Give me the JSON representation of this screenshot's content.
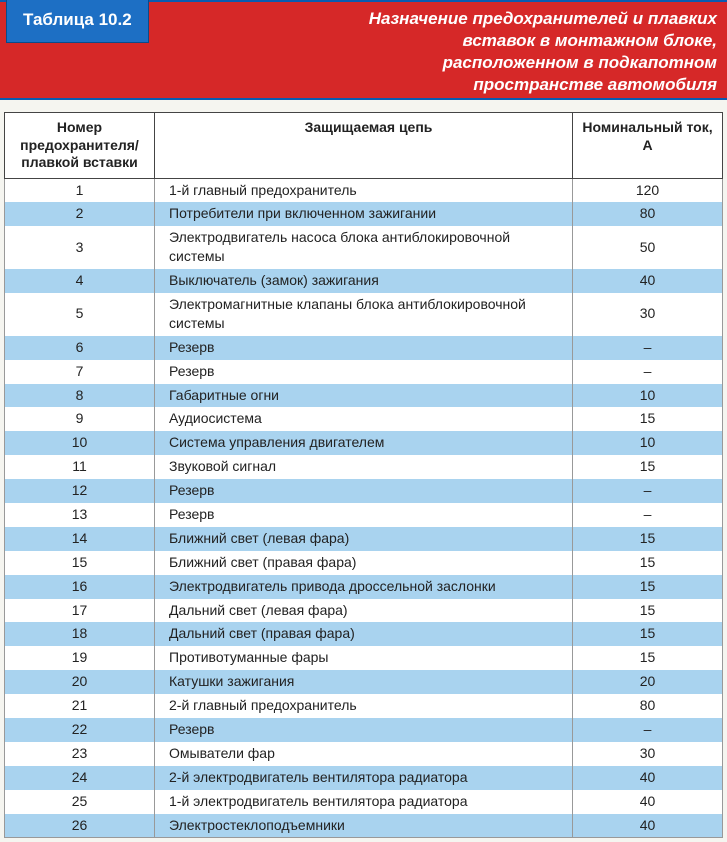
{
  "header": {
    "badge": "Таблица 10.2",
    "title_lines": [
      "Назначение предохранителей и плавких",
      "вставок в монтажном блоке,",
      "расположенном в подкапотном",
      "пространстве автомобиля"
    ],
    "band_color": "#d62828",
    "badge_color": "#1d6fc4",
    "band_border": "#0a5bb0"
  },
  "table": {
    "columns": [
      "Номер предохранителя/ плавкой вставки",
      "Защищаемая цепь",
      "Номинальный ток, А"
    ],
    "stripe_colors": {
      "odd": "#ffffff",
      "even": "#a9d3ef"
    },
    "rows": [
      {
        "num": "1",
        "desc": "1-й главный предохранитель",
        "amp": "120"
      },
      {
        "num": "2",
        "desc": "Потребители при включенном зажигании",
        "amp": "80"
      },
      {
        "num": "3",
        "desc": "Электродвигатель насоса блока антиблокировочной системы",
        "amp": "50"
      },
      {
        "num": "4",
        "desc": "Выключатель (замок) зажигания",
        "amp": "40"
      },
      {
        "num": "5",
        "desc": "Электромагнитные клапаны блока антиблокировочной системы",
        "amp": "30"
      },
      {
        "num": "6",
        "desc": "Резерв",
        "amp": "–"
      },
      {
        "num": "7",
        "desc": "Резерв",
        "amp": "–"
      },
      {
        "num": "8",
        "desc": "Габаритные огни",
        "amp": "10"
      },
      {
        "num": "9",
        "desc": "Аудиосистема",
        "amp": "15"
      },
      {
        "num": "10",
        "desc": "Система управления двигателем",
        "amp": "10"
      },
      {
        "num": "11",
        "desc": "Звуковой сигнал",
        "amp": "15"
      },
      {
        "num": "12",
        "desc": "Резерв",
        "amp": "–"
      },
      {
        "num": "13",
        "desc": "Резерв",
        "amp": "–"
      },
      {
        "num": "14",
        "desc": "Ближний свет (левая фара)",
        "amp": "15"
      },
      {
        "num": "15",
        "desc": "Ближний свет (правая фара)",
        "amp": "15"
      },
      {
        "num": "16",
        "desc": "Электродвигатель привода дроссельной заслонки",
        "amp": "15"
      },
      {
        "num": "17",
        "desc": "Дальний свет (левая фара)",
        "amp": "15"
      },
      {
        "num": "18",
        "desc": "Дальний свет (правая фара)",
        "amp": "15"
      },
      {
        "num": "19",
        "desc": "Противотуманные фары",
        "amp": "15"
      },
      {
        "num": "20",
        "desc": "Катушки зажигания",
        "amp": "20"
      },
      {
        "num": "21",
        "desc": "2-й главный предохранитель",
        "amp": "80"
      },
      {
        "num": "22",
        "desc": "Резерв",
        "amp": "–"
      },
      {
        "num": "23",
        "desc": "Омыватели фар",
        "amp": "30"
      },
      {
        "num": "24",
        "desc": "2-й электродвигатель вентилятора радиатора",
        "amp": "40"
      },
      {
        "num": "25",
        "desc": "1-й электродвигатель вентилятора радиатора",
        "amp": "40"
      },
      {
        "num": "26",
        "desc": "Электростеклоподъемники",
        "amp": "40"
      }
    ]
  }
}
